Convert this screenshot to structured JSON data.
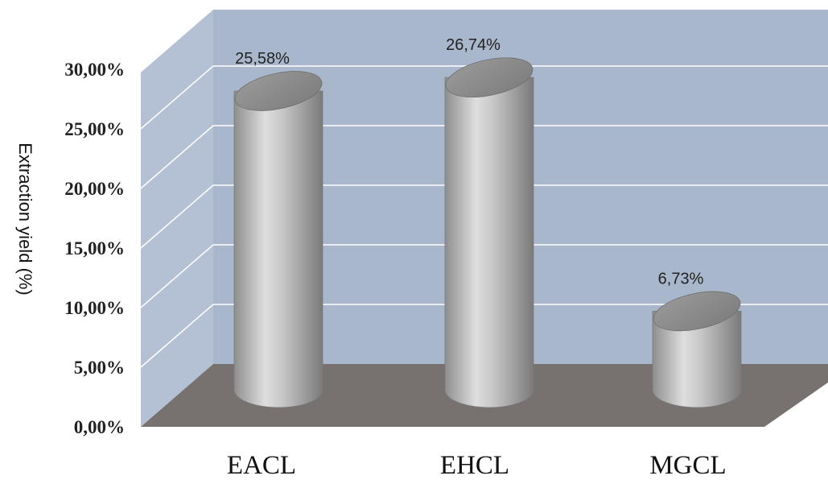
{
  "chart_data": {
    "type": "bar",
    "style": "3d-cylinder",
    "categories": [
      "EACL",
      "EHCL",
      "MGCL"
    ],
    "values": [
      25.58,
      26.74,
      6.73
    ],
    "data_labels": [
      "25,58%",
      "26,74%",
      "6,73%"
    ],
    "title": "",
    "xlabel": "",
    "ylabel": "Extraction yield (%)",
    "ylim": [
      0,
      30
    ],
    "ytick_values": [
      0,
      5,
      10,
      15,
      20,
      25,
      30
    ],
    "ytick_labels": [
      "0,00%",
      "5,00%",
      "10,00%",
      "15,00%",
      "20,00%",
      "25,00%",
      "30,00%"
    ],
    "grid": true,
    "legend": "none",
    "colors": {
      "back_wall": "#a9b7cc",
      "side_wall": "#b4c0d3",
      "floor": "#777270",
      "bar": "#b8b8b8",
      "grid": "#ffffff"
    }
  }
}
